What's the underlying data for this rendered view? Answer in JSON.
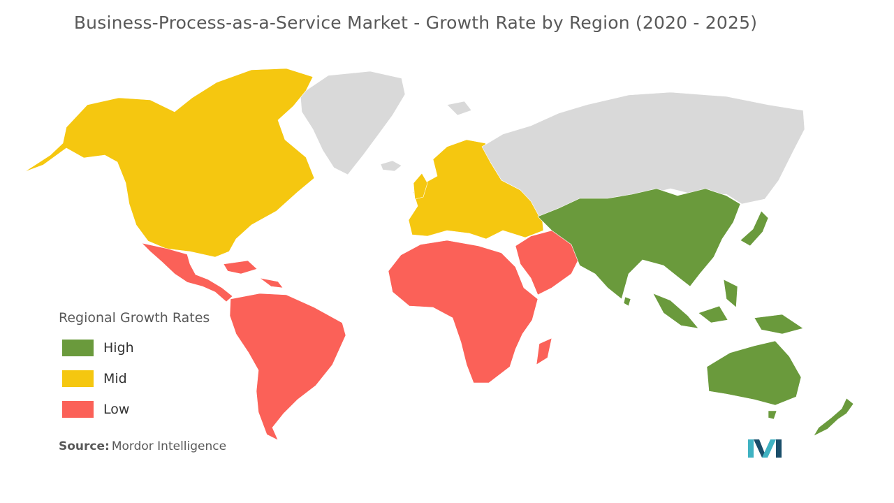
{
  "title": "Business-Process-as-a-Service Market - Growth Rate by Region (2020 - 2025)",
  "legend": {
    "title": "Regional Growth Rates",
    "items": [
      {
        "label": "High",
        "color": "#6a9a3c"
      },
      {
        "label": "Mid",
        "color": "#f5c710"
      },
      {
        "label": "Low",
        "color": "#fb6158"
      }
    ]
  },
  "colors": {
    "no_data": "#d9d9d9",
    "logo_teal": "#3fb2c2",
    "logo_dark": "#1a4e6a"
  },
  "regions": {
    "north_america": "Mid",
    "europe": "Mid",
    "latin_america": "Low",
    "middle_east_and_africa": "Low",
    "asia_pacific": "High"
  },
  "source": {
    "prefix": "Source:",
    "text": "Mordor Intelligence"
  },
  "logo": {
    "icon": "mordor-intelligence-logo"
  }
}
